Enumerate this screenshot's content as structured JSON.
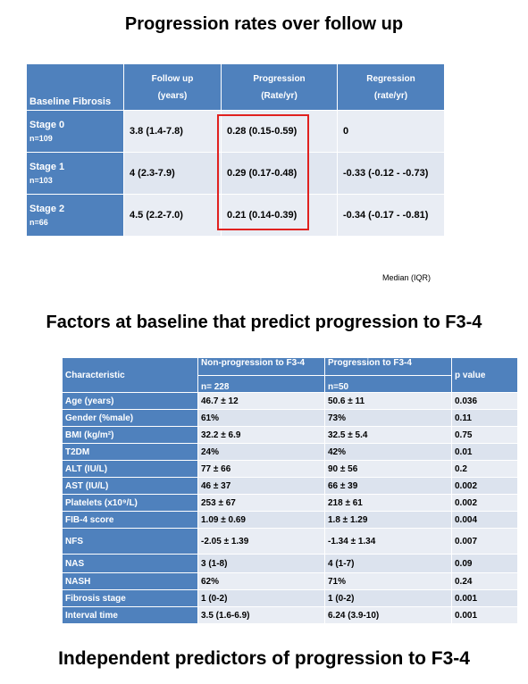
{
  "titles": {
    "top": "Progression rates over follow up",
    "middle": "Factors at baseline that predict progression to F3-4",
    "bottom": "Independent predictors of progression to F3-4"
  },
  "table1": {
    "headers": {
      "baseline": "Baseline Fibrosis",
      "followup": "Follow up",
      "followup_unit": "(years)",
      "progression": "Progression",
      "progression_unit": "(Rate/yr)",
      "regression": "Regression",
      "regression_unit": "(rate/yr)"
    },
    "rows": [
      {
        "stage": "Stage 0",
        "n": "n=109",
        "followup": "3.8 (1.4-7.8)",
        "progression": "0.28 (0.15-0.59)",
        "regression": "0"
      },
      {
        "stage": "Stage 1",
        "n": "n=103",
        "followup": "4 (2.3-7.9)",
        "progression": "0.29 (0.17-0.48)",
        "regression": "-0.33 (-0.12 - -0.73)"
      },
      {
        "stage": "Stage 2",
        "n": "n=66",
        "followup": "4.5 (2.2-7.0)",
        "progression": "0.21 (0.14-0.39)",
        "regression": "-0.34 (-0.17 - -0.81)"
      }
    ],
    "note": "Median (IQR)"
  },
  "table2": {
    "headers": {
      "characteristic": "Characteristic",
      "nonprog": "Non-progression to F3-4",
      "nonprog_n": "n= 228",
      "prog": "Progression to F3-4",
      "prog_n": "n=50",
      "p": "p value"
    },
    "rows": [
      {
        "label": "Age (years)",
        "nonprog": "46.7 ± 12",
        "prog": "50.6 ± 11",
        "p": "0.036"
      },
      {
        "label": "Gender (%male)",
        "nonprog": "61%",
        "prog": "73%",
        "p": "0.11"
      },
      {
        "label": "BMI (kg/m²)",
        "nonprog": "32.2 ± 6.9",
        "prog": "32.5 ± 5.4",
        "p": "0.75"
      },
      {
        "label": "T2DM",
        "nonprog": "24%",
        "prog": "42%",
        "p": "0.01"
      },
      {
        "label": "ALT (IU/L)",
        "nonprog": "77 ± 66",
        "prog": "90 ± 56",
        "p": "0.2"
      },
      {
        "label": "AST (IU/L)",
        "nonprog": "46 ± 37",
        "prog": "66 ± 39",
        "p": "0.002"
      },
      {
        "label": "Platelets (x10⁹/L)",
        "nonprog": "253 ± 67",
        "prog": "218 ± 61",
        "p": "0.002"
      },
      {
        "label": "FIB-4 score",
        "nonprog": "1.09 ± 0.69",
        "prog": "1.8 ± 1.29",
        "p": "0.004"
      },
      {
        "label": "NFS",
        "nonprog": "-2.05 ± 1.39",
        "prog": "-1.34 ± 1.34",
        "p": "0.007"
      },
      {
        "label": "NAS",
        "nonprog": "3 (1-8)",
        "prog": "4 (1-7)",
        "p": "0.09"
      },
      {
        "label": "NASH",
        "nonprog": "62%",
        "prog": "71%",
        "p": "0.24"
      },
      {
        "label": "Fibrosis stage",
        "nonprog": "1 (0-2)",
        "prog": "1 (0-2)",
        "p": "0.001"
      },
      {
        "label": "Interval time",
        "nonprog": "3.5 (1.6-6.9)",
        "prog": "6.24 (3.9-10)",
        "p": "0.001"
      }
    ]
  },
  "colors": {
    "header_blue": "#4f81bd",
    "cell_light": "#e9edf4",
    "highlight_red": "#e0211f"
  }
}
